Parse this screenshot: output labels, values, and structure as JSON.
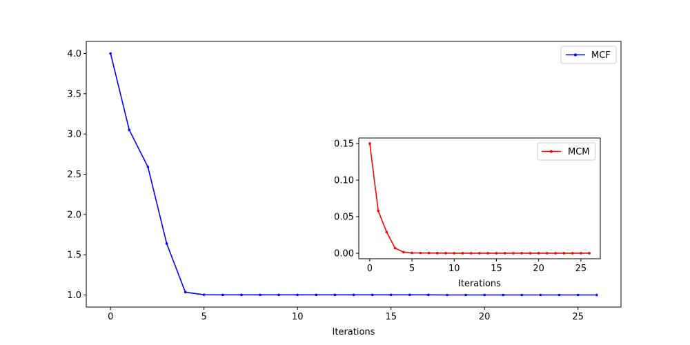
{
  "chart_data": [
    {
      "type": "line",
      "role": "main",
      "xlabel": "Iterations",
      "ylabel": "",
      "xlim": [
        -1.3,
        27.3
      ],
      "ylim": [
        0.85,
        4.15
      ],
      "xticks": [
        0,
        5,
        10,
        15,
        20,
        25
      ],
      "xtick_labels": [
        "0",
        "5",
        "10",
        "15",
        "20",
        "25"
      ],
      "yticks": [
        1.0,
        1.5,
        2.0,
        2.5,
        3.0,
        3.5,
        4.0
      ],
      "ytick_labels": [
        "1.0",
        "1.5",
        "2.0",
        "2.5",
        "3.0",
        "3.5",
        "4.0"
      ],
      "legend": "upper right",
      "series": [
        {
          "name": "MCF",
          "color": "#0000ff",
          "marker": "dot",
          "x": [
            0,
            1,
            2,
            3,
            4,
            5,
            6,
            7,
            8,
            9,
            10,
            11,
            12,
            13,
            14,
            15,
            16,
            17,
            18,
            19,
            20,
            21,
            22,
            23,
            24,
            25,
            26
          ],
          "y": [
            4.0,
            3.05,
            2.59,
            1.64,
            1.035,
            1.003,
            1.002,
            1.002,
            1.002,
            1.002,
            1.002,
            1.002,
            1.002,
            1.002,
            1.002,
            1.002,
            1.002,
            1.002,
            1.0,
            1.0,
            1.0,
            1.0,
            1.0,
            1.0,
            1.0,
            1.0,
            1.0
          ]
        }
      ]
    },
    {
      "type": "line",
      "role": "inset",
      "xlabel": "Iterations",
      "ylabel": "",
      "xlim": [
        -1.3,
        27.3
      ],
      "ylim": [
        -0.0075,
        0.1575
      ],
      "xticks": [
        0,
        5,
        10,
        15,
        20,
        25
      ],
      "xtick_labels": [
        "0",
        "5",
        "10",
        "15",
        "20",
        "25"
      ],
      "yticks": [
        0.0,
        0.05,
        0.1,
        0.15
      ],
      "ytick_labels": [
        "0.00",
        "0.05",
        "0.10",
        "0.15"
      ],
      "legend": "upper right",
      "series": [
        {
          "name": "MCM",
          "color": "#ff0000",
          "marker": "dot",
          "x": [
            0,
            1,
            2,
            3,
            4,
            5,
            6,
            7,
            8,
            9,
            10,
            11,
            12,
            13,
            14,
            15,
            16,
            17,
            18,
            19,
            20,
            21,
            22,
            23,
            24,
            25,
            26
          ],
          "y": [
            0.15,
            0.058,
            0.029,
            0.007,
            0.0015,
            0.0005,
            0.0004,
            0.0003,
            0.0002,
            0.0002,
            0.0001,
            0.0001,
            0.0001,
            0.0001,
            0.0001,
            0.0001,
            0.0001,
            0.0001,
            0.0001,
            0.0001,
            0.0001,
            0.0001,
            0.0001,
            0.0001,
            0.0001,
            0.0001,
            0.0001
          ]
        }
      ]
    }
  ]
}
